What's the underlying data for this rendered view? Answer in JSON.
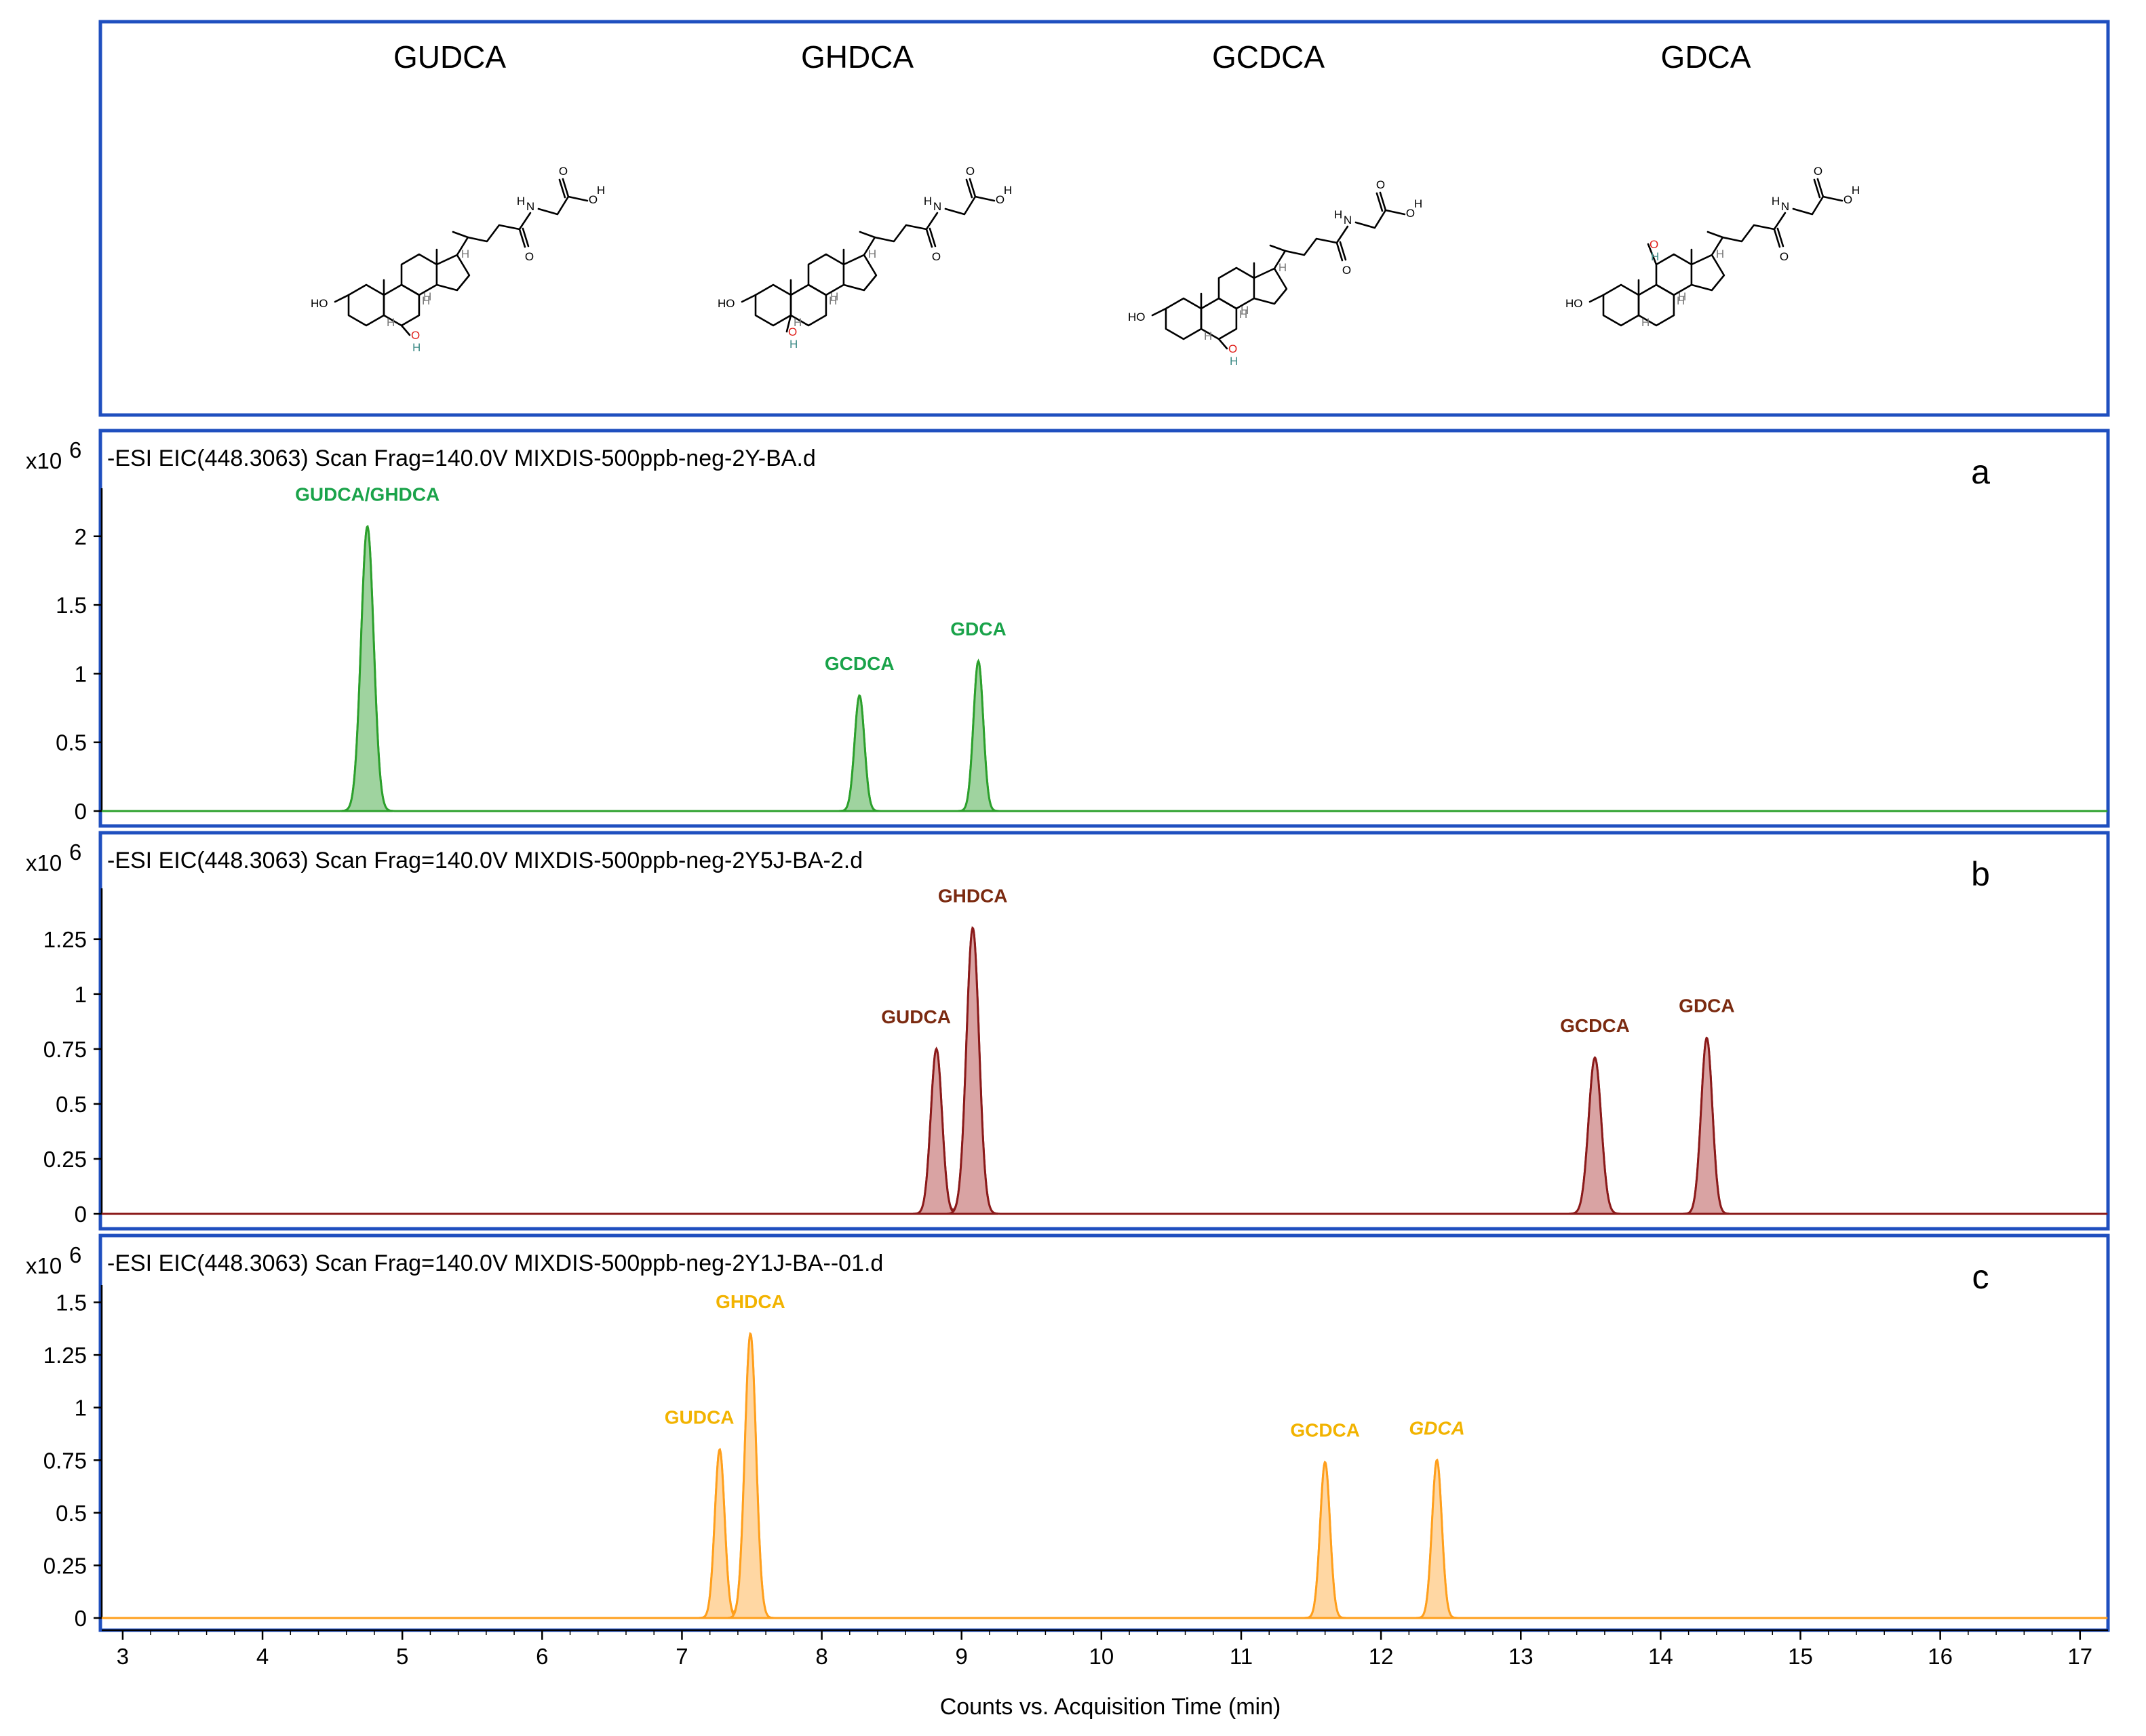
{
  "structures": {
    "names": [
      "GUDCA",
      "GHDCA",
      "GCDCA",
      "GDCA"
    ],
    "atom_labels": {
      "H": "H",
      "O": "O",
      "N": "N",
      "OH": "OH"
    }
  },
  "chart_data": [
    {
      "type": "line",
      "panel": "a",
      "title": "-ESI EIC(448.3063) Scan Frag=140.0V MIXDIS-500ppb-neg-2Y-BA.d",
      "y_multiplier": "x10",
      "y_exponent": "6",
      "ylim": [
        0,
        2.3
      ],
      "yticks": [
        "0",
        "0.5",
        "1",
        "1.5",
        "2"
      ],
      "yticks_values": [
        0,
        0.5,
        1,
        1.5,
        2
      ],
      "color": "#2ca02c",
      "fill": "#9fd39f",
      "label_color": "#1aa34a",
      "peaks": [
        {
          "label": "GUDCA/GHDCA",
          "rt": 4.75,
          "height": 2.07,
          "width": 0.045
        },
        {
          "label": "GCDCA",
          "rt": 8.27,
          "height": 0.84,
          "width": 0.035
        },
        {
          "label": "GDCA",
          "rt": 9.12,
          "height": 1.09,
          "width": 0.035
        }
      ]
    },
    {
      "type": "line",
      "panel": "b",
      "title": "-ESI EIC(448.3063) Scan Frag=140.0V MIXDIS-500ppb-neg-2Y5J-BA-2.d",
      "y_multiplier": "x10",
      "y_exponent": "6",
      "ylim": [
        0,
        1.45
      ],
      "yticks": [
        "0",
        "0.25",
        "0.5",
        "0.75",
        "1",
        "1.25"
      ],
      "yticks_values": [
        0,
        0.25,
        0.5,
        0.75,
        1,
        1.25
      ],
      "color": "#8b1a1a",
      "fill": "#d9a3a3",
      "label_color": "#7b2a10",
      "peaks": [
        {
          "label": "GUDCA",
          "rt": 8.82,
          "height": 0.75,
          "width": 0.04
        },
        {
          "label": "GHDCA",
          "rt": 9.08,
          "height": 1.3,
          "width": 0.045
        },
        {
          "label": "GCDCA",
          "rt": 13.53,
          "height": 0.71,
          "width": 0.045
        },
        {
          "label": "GDCA",
          "rt": 14.33,
          "height": 0.8,
          "width": 0.04
        }
      ]
    },
    {
      "type": "line",
      "panel": "c",
      "title": "-ESI EIC(448.3063) Scan Frag=140.0V MIXDIS-500ppb-neg-2Y1J-BA--01.d",
      "y_multiplier": "x10",
      "y_exponent": "6",
      "ylim": [
        0,
        1.55
      ],
      "yticks": [
        "0",
        "0.25",
        "0.5",
        "0.75",
        "1",
        "1.25",
        "1.5"
      ],
      "yticks_values": [
        0,
        0.25,
        0.5,
        0.75,
        1,
        1.25,
        1.5
      ],
      "color": "#ff9f1c",
      "fill": "#ffd7a3",
      "label_color": "#f2b300",
      "peaks": [
        {
          "label": "GUDCA",
          "rt": 7.27,
          "height": 0.8,
          "width": 0.035
        },
        {
          "label": "GHDCA",
          "rt": 7.49,
          "height": 1.35,
          "width": 0.04
        },
        {
          "label": "GCDCA",
          "rt": 11.6,
          "height": 0.74,
          "width": 0.035
        },
        {
          "label": "GDCA",
          "rt": 12.4,
          "height": 0.75,
          "width": 0.035,
          "italic": true
        }
      ]
    }
  ],
  "x_axis": {
    "label": "Counts vs. Acquisition Time (min)",
    "xlim": [
      2.85,
      17.2
    ],
    "ticks": [
      "3",
      "4",
      "5",
      "6",
      "7",
      "8",
      "9",
      "10",
      "11",
      "12",
      "13",
      "14",
      "15",
      "16",
      "17"
    ],
    "tick_values": [
      3,
      4,
      5,
      6,
      7,
      8,
      9,
      10,
      11,
      12,
      13,
      14,
      15,
      16,
      17
    ]
  },
  "colors": {
    "frame": "#1f4fbf",
    "hydroxyl": "#e0201b",
    "hydrogen_gray": "#777777",
    "hydrogen_teal": "#3c8a86"
  }
}
